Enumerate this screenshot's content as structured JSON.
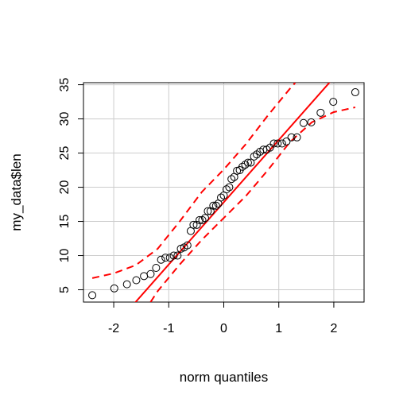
{
  "chart_data": {
    "type": "scatter",
    "title": "",
    "xlabel": "norm quantiles",
    "ylabel": "my_data$len",
    "xlim": [
      -2.55,
      2.55
    ],
    "ylim": [
      3.2,
      35.3
    ],
    "x_ticks": [
      -2,
      -1,
      0,
      1,
      2
    ],
    "x_tick_labels": [
      "-2",
      "-1",
      "0",
      "1",
      "2"
    ],
    "y_ticks": [
      5,
      10,
      15,
      20,
      25,
      30,
      35
    ],
    "y_tick_labels": [
      "5",
      "10",
      "15",
      "20",
      "25",
      "30",
      "35"
    ],
    "grid": true,
    "series": [
      {
        "kind": "points",
        "x": [
          -2.39,
          -1.99,
          -1.76,
          -1.59,
          -1.45,
          -1.33,
          -1.23,
          -1.14,
          -1.06,
          -0.98,
          -0.91,
          -0.84,
          -0.78,
          -0.72,
          -0.66,
          -0.6,
          -0.55,
          -0.49,
          -0.44,
          -0.39,
          -0.34,
          -0.29,
          -0.24,
          -0.19,
          -0.14,
          -0.1,
          -0.05,
          0.0,
          0.05,
          0.1,
          0.14,
          0.19,
          0.24,
          0.29,
          0.34,
          0.39,
          0.44,
          0.49,
          0.55,
          0.6,
          0.66,
          0.72,
          0.78,
          0.84,
          0.91,
          0.98,
          1.06,
          1.14,
          1.23,
          1.33,
          1.45,
          1.59,
          1.76,
          1.99,
          2.39
        ],
        "y": [
          4.2,
          5.2,
          5.8,
          6.4,
          7.0,
          7.3,
          8.2,
          9.4,
          9.7,
          9.7,
          10.0,
          10.0,
          11.0,
          11.2,
          11.5,
          13.6,
          14.5,
          14.5,
          15.2,
          15.2,
          15.5,
          16.5,
          16.5,
          17.3,
          17.3,
          17.6,
          18.5,
          18.8,
          19.7,
          20.0,
          21.2,
          21.5,
          22.4,
          22.5,
          23.0,
          23.3,
          23.6,
          23.6,
          24.5,
          24.8,
          25.2,
          25.5,
          25.5,
          25.8,
          26.4,
          26.4,
          26.4,
          26.7,
          27.3,
          27.3,
          29.4,
          29.5,
          30.9,
          32.5,
          33.9
        ]
      },
      {
        "kind": "reference-line",
        "color": "#ff0000",
        "x": [
          -2.55,
          2.55
        ],
        "y": [
          -5.43,
          41.05
        ]
      },
      {
        "kind": "confidence-band-upper",
        "color": "#ff0000",
        "x": [
          -2.39,
          -2.0,
          -1.6,
          -1.2,
          -0.8,
          -0.4,
          0.0,
          0.4,
          0.8,
          1.2,
          1.3
        ],
        "y": [
          6.7,
          7.4,
          8.6,
          11.0,
          15.0,
          19.3,
          22.6,
          26.3,
          30.5,
          34.4,
          35.3
        ]
      },
      {
        "kind": "confidence-band-lower",
        "color": "#ff0000",
        "x": [
          -1.33,
          -1.2,
          -0.8,
          -0.4,
          0.0,
          0.4,
          0.8,
          1.2,
          1.6,
          2.0,
          2.39
        ],
        "y": [
          3.2,
          4.8,
          8.7,
          12.3,
          15.5,
          18.7,
          22.5,
          26.6,
          29.5,
          31.0,
          31.7
        ]
      }
    ]
  }
}
